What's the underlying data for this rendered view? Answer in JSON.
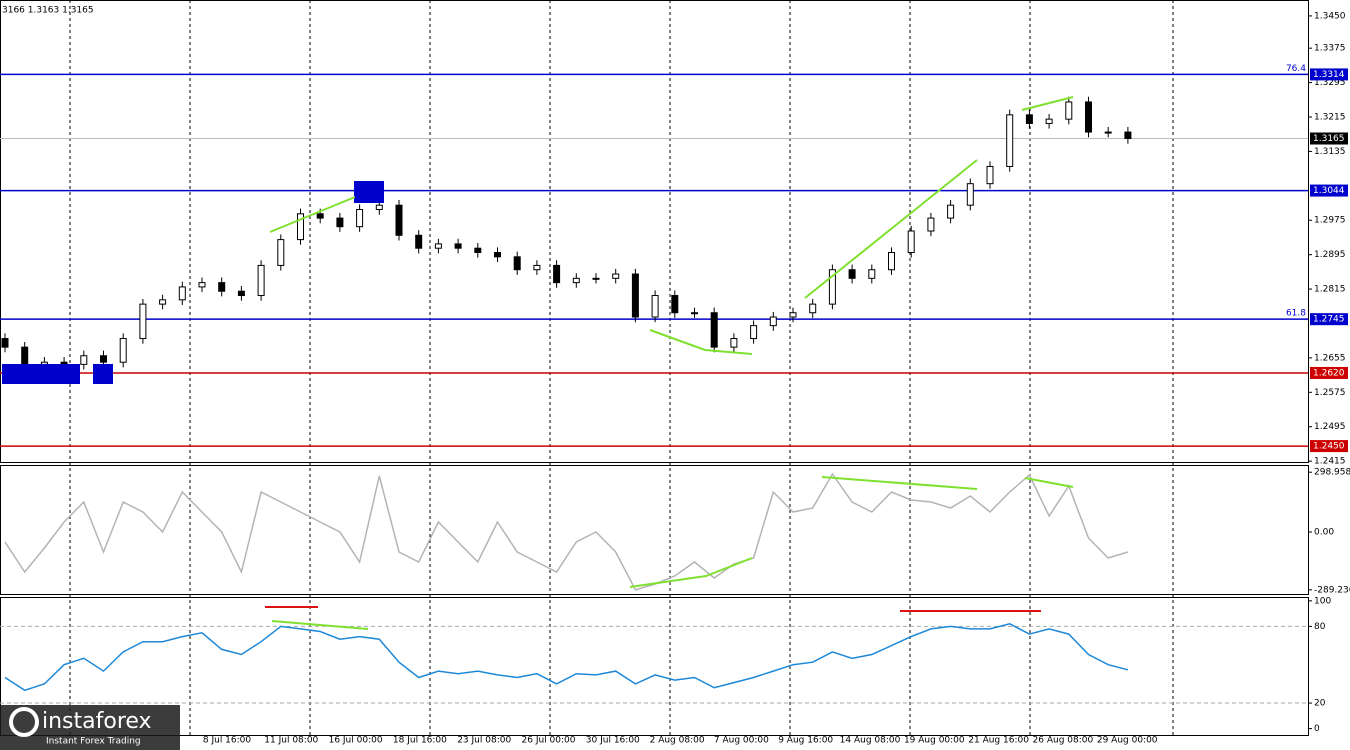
{
  "header": "3166 1.3163 1.3165",
  "logo": {
    "name": "instaforex",
    "tagline": "Instant Forex Trading"
  },
  "chart_data": [
    {
      "type": "candlestick",
      "xtick_labels": [
        "8 Jul 16:00",
        "11 Jul 08:00",
        "16 Jul 00:00",
        "18 Jul 16:00",
        "23 Jul 08:00",
        "26 Jul 00:00",
        "30 Jul 16:00",
        "2 Aug 08:00",
        "7 Aug 00:00",
        "9 Aug 16:00",
        "14 Aug 08:00",
        "19 Aug 00:00",
        "21 Aug 16:00",
        "26 Aug 08:00",
        "29 Aug 00:00"
      ],
      "open": [
        1.27,
        1.268,
        1.264,
        1.2645,
        1.264,
        1.266,
        1.2645,
        1.27,
        1.278,
        1.279,
        1.282,
        1.283,
        1.281,
        1.28,
        1.287,
        1.293,
        1.299,
        1.298,
        1.296,
        1.3,
        1.301,
        1.294,
        1.291,
        1.292,
        1.291,
        1.29,
        1.289,
        1.286,
        1.287,
        1.283,
        1.284,
        1.284,
        1.285,
        1.275,
        1.28,
        1.276,
        1.276,
        1.268,
        1.27,
        1.273,
        1.275,
        1.276,
        1.278,
        1.286,
        1.284,
        1.286,
        1.29,
        1.295,
        1.298,
        1.301,
        1.306,
        1.31,
        1.322,
        1.32,
        1.321,
        1.325,
        1.318,
        1.318
      ],
      "high": [
        1.2712,
        1.2692,
        1.2657,
        1.2657,
        1.2672,
        1.2672,
        1.2712,
        1.2792,
        1.2802,
        1.2832,
        1.2842,
        1.2842,
        1.2822,
        1.2882,
        1.2942,
        1.3002,
        1.3002,
        1.2992,
        1.3012,
        1.304,
        1.3022,
        1.2952,
        1.2932,
        1.2932,
        1.2922,
        1.2912,
        1.2902,
        1.2882,
        1.2882,
        1.2852,
        1.2852,
        1.2862,
        1.2862,
        1.2812,
        1.2812,
        1.2772,
        1.2772,
        1.2712,
        1.2742,
        1.2762,
        1.2772,
        1.2792,
        1.2872,
        1.2872,
        1.2872,
        1.2912,
        1.2962,
        1.2992,
        1.3022,
        1.3072,
        1.3112,
        1.3232,
        1.3232,
        1.3222,
        1.3262,
        1.3262,
        1.3192,
        1.3192
      ],
      "low": [
        1.2668,
        1.2628,
        1.2628,
        1.2628,
        1.2628,
        1.2633,
        1.2633,
        1.2688,
        1.2768,
        1.2778,
        1.2808,
        1.2798,
        1.2788,
        1.2788,
        1.2858,
        1.2918,
        1.2968,
        1.2948,
        1.2948,
        1.2988,
        1.2928,
        1.2898,
        1.2898,
        1.2898,
        1.2888,
        1.2878,
        1.2848,
        1.2848,
        1.2818,
        1.2818,
        1.2828,
        1.2828,
        1.2738,
        1.2738,
        1.2748,
        1.2748,
        1.2668,
        1.2668,
        1.2688,
        1.2718,
        1.2738,
        1.2748,
        1.2768,
        1.2828,
        1.2828,
        1.2848,
        1.2888,
        1.2938,
        1.2968,
        1.2998,
        1.3048,
        1.3088,
        1.3188,
        1.3188,
        1.3198,
        1.3168,
        1.3168,
        1.3153
      ],
      "close": [
        1.268,
        1.264,
        1.2645,
        1.264,
        1.266,
        1.2645,
        1.27,
        1.278,
        1.279,
        1.282,
        1.283,
        1.281,
        1.28,
        1.287,
        1.293,
        1.299,
        1.298,
        1.296,
        1.3,
        1.301,
        1.294,
        1.291,
        1.292,
        1.291,
        1.29,
        1.289,
        1.286,
        1.287,
        1.283,
        1.284,
        1.284,
        1.285,
        1.275,
        1.28,
        1.276,
        1.276,
        1.268,
        1.27,
        1.273,
        1.275,
        1.276,
        1.278,
        1.286,
        1.284,
        1.286,
        1.29,
        1.295,
        1.298,
        1.301,
        1.306,
        1.31,
        1.322,
        1.32,
        1.321,
        1.325,
        1.318,
        1.318,
        1.3165
      ],
      "ylim": [
        1.2413,
        1.3487
      ],
      "yticks": [
        {
          "value": 1.345,
          "label": "1.3450"
        },
        1.3375,
        1.3295,
        1.3215,
        1.3135,
        1.2975,
        1.2895,
        1.2815,
        1.2655,
        1.2575,
        1.2495,
        1.2415
      ],
      "levels": [
        {
          "value": 1.3314,
          "color": "#0000cd",
          "label": "76.4"
        },
        {
          "value": 1.3044,
          "color": "#0000cd"
        },
        {
          "value": 1.2745,
          "color": "#0000cd",
          "label": "61.8"
        },
        {
          "value": {
            "value": 1.262,
            "label": "1.2620"
          },
          "color": "#cc0000"
        },
        {
          "value": {
            "value": 1.245,
            "label": "1.2450"
          },
          "color": "#cc0000"
        },
        {
          "value": 1.3165,
          "color": "#000000"
        }
      ]
    },
    {
      "type": "line",
      "series": [
        {
          "color": "#b4b4b4",
          "values": [
            -50,
            -200,
            -80,
            50,
            150,
            -100,
            150,
            100,
            0,
            200,
            100,
            0,
            -200,
            200,
            150,
            100,
            50,
            0,
            -150,
            280,
            -100,
            -150,
            50,
            -50,
            -150,
            50,
            -100,
            -150,
            -200,
            -50,
            0,
            -100,
            -289,
            -260,
            -220,
            -150,
            -230,
            -160,
            -130,
            200,
            100,
            120,
            290,
            150,
            100,
            200,
            160,
            150,
            120,
            180,
            100,
            200,
            285,
            80,
            230,
            -30,
            -130,
            -100
          ]
        }
      ],
      "ylim": [
        -315,
        335
      ],
      "yticks": [
        298.9583,
        {
          "value": 0,
          "label": "0.00"
        },
        -289.236
      ]
    },
    {
      "type": "line",
      "series": [
        {
          "color": "#1e88d8",
          "values": [
            40,
            30,
            35,
            50,
            55,
            45,
            60,
            68,
            68,
            72,
            75,
            62,
            58,
            68,
            80,
            78,
            76,
            70,
            72,
            70,
            52,
            40,
            45,
            43,
            45,
            42,
            40,
            43,
            35,
            43,
            42,
            45,
            35,
            42,
            38,
            40,
            32,
            36,
            40,
            45,
            50,
            52,
            60,
            55,
            58,
            65,
            72,
            78,
            80,
            78,
            78,
            82,
            74,
            78,
            74,
            58,
            50,
            46
          ]
        }
      ],
      "ylim": [
        -5,
        103
      ],
      "yticks": [
        100,
        80,
        20,
        0
      ],
      "dashed_levels": [
        80,
        20
      ]
    }
  ]
}
